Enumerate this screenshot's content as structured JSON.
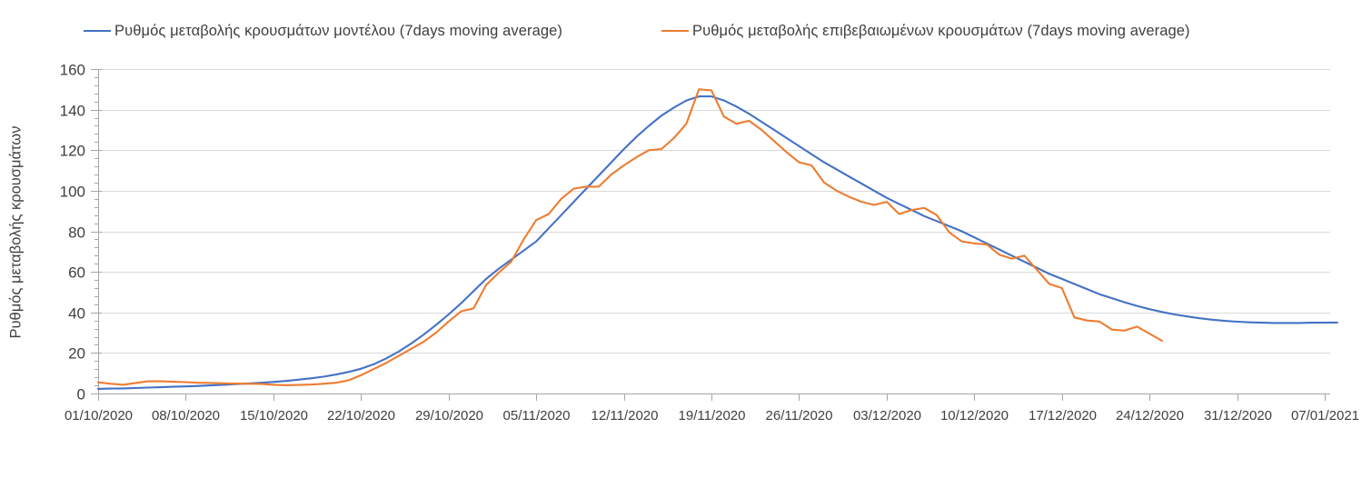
{
  "chart_data": {
    "type": "line",
    "title": "",
    "ylabel": "Ρυθμός μεταβολής κρουσμάτων",
    "xlabel": "",
    "ylim": [
      0,
      160
    ],
    "y_ticks": [
      0,
      20,
      40,
      60,
      80,
      100,
      120,
      140,
      160
    ],
    "y_minor_tick_step": 4,
    "grid": "horizontal gridlines at every 20",
    "legend_position": "top",
    "x_unit": "days since 01/10/2020, one point per day",
    "x_total_days": 98,
    "x_tick_days": [
      0,
      7,
      14,
      21,
      28,
      35,
      42,
      49,
      56,
      63,
      70,
      77,
      84,
      91,
      98
    ],
    "x_tick_labels": [
      "01/10/2020",
      "08/10/2020",
      "15/10/2020",
      "22/10/2020",
      "29/10/2020",
      "05/11/2020",
      "12/11/2020",
      "19/11/2020",
      "26/11/2020",
      "03/12/2020",
      "10/12/2020",
      "17/12/2020",
      "24/12/2020",
      "31/12/2020",
      "07/01/2021"
    ],
    "colors": {
      "model": "#4472C4",
      "confirmed": "#ED7D31",
      "grid": "#D9D9D9",
      "axis": "#A6A6A6",
      "text": "#3F3F3F"
    },
    "series": [
      {
        "name": "Ρυθμός μεταβολής κρουσμάτων μοντέλου (7days moving average)",
        "color": "#4472C4",
        "start_day": 0,
        "values": [
          2.3,
          2.4,
          2.5,
          2.7,
          2.9,
          3.1,
          3.3,
          3.5,
          3.7,
          4.0,
          4.3,
          4.6,
          4.9,
          5.3,
          5.7,
          6.2,
          6.8,
          7.5,
          8.3,
          9.3,
          10.6,
          12.2,
          14.4,
          17.2,
          20.6,
          24.6,
          29.0,
          33.8,
          39.0,
          44.5,
          50.5,
          56.5,
          61.5,
          66.0,
          70.5,
          75.0,
          81.5,
          88.0,
          94.5,
          101.0,
          107.5,
          114.0,
          120.5,
          126.5,
          132.0,
          137.0,
          141.0,
          144.5,
          146.5,
          146.5,
          144.5,
          141.5,
          138.0,
          134.0,
          130.0,
          126.0,
          122.0,
          118.0,
          114.0,
          110.5,
          107.0,
          103.5,
          100.0,
          96.5,
          93.5,
          90.5,
          87.5,
          85.0,
          82.5,
          80.0,
          77.0,
          74.0,
          71.0,
          68.0,
          65.0,
          62.0,
          59.0,
          56.5,
          54.0,
          51.5,
          49.0,
          47.0,
          45.0,
          43.2,
          41.6,
          40.2,
          39.0,
          38.0,
          37.1,
          36.4,
          35.8,
          35.4,
          35.1,
          34.9,
          34.8,
          34.8,
          34.8,
          34.9,
          34.9,
          35.0
        ]
      },
      {
        "name": "Ρυθμός μεταβολής επιβεβαιωμένων κρουσμάτων (7days moving average)",
        "color": "#ED7D31",
        "start_day": 0,
        "values": [
          5.5,
          4.8,
          4.3,
          5.2,
          6.0,
          6.0,
          5.8,
          5.6,
          5.3,
          5.2,
          5.0,
          4.9,
          4.8,
          4.7,
          4.3,
          4.1,
          4.2,
          4.4,
          4.8,
          5.3,
          6.5,
          9.0,
          12.0,
          15.0,
          18.5,
          22.0,
          25.5,
          30.0,
          35.5,
          40.5,
          42.0,
          53.5,
          59.5,
          65.0,
          76.0,
          85.5,
          88.5,
          96.0,
          101.0,
          102.0,
          102.0,
          108.0,
          112.5,
          116.5,
          120.0,
          120.5,
          126.0,
          133.0,
          150.0,
          149.5,
          136.5,
          133.0,
          134.5,
          130.0,
          124.5,
          119.0,
          114.0,
          112.5,
          104.0,
          100.0,
          97.0,
          94.5,
          93.0,
          94.5,
          88.5,
          90.5,
          91.5,
          88.0,
          79.5,
          75.0,
          74.0,
          73.5,
          68.5,
          66.5,
          68.0,
          61.0,
          54.0,
          52.0,
          37.5,
          36.0,
          35.5,
          31.5,
          31.0,
          33.0,
          29.5,
          26.0
        ]
      }
    ]
  }
}
